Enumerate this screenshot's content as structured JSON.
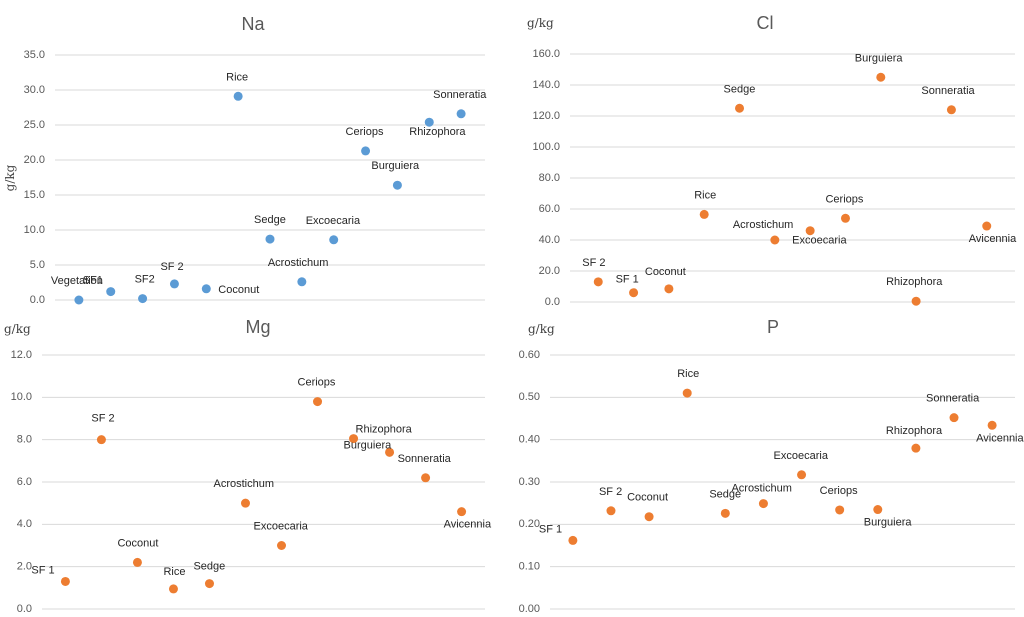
{
  "chart_data": [
    {
      "type": "scatter",
      "title": "Na",
      "ylabel": "g/kg",
      "ylim": [
        0,
        35
      ],
      "ystep": 5,
      "ydecimals": 1,
      "grid": true,
      "color": "#5B9BD5",
      "points": [
        {
          "label": "Vegetation",
          "x": 1,
          "y": 0.0
        },
        {
          "label": "SF1",
          "x": 2,
          "y": 1.2
        },
        {
          "label": "SF2",
          "x": 3,
          "y": 0.2
        },
        {
          "label": "SF 2",
          "x": 4,
          "y": 2.3
        },
        {
          "label": "Coconut",
          "x": 5,
          "y": 1.6
        },
        {
          "label": "Rice",
          "x": 6,
          "y": 29.1
        },
        {
          "label": "Sedge",
          "x": 7,
          "y": 8.7
        },
        {
          "label": "Acrostichum",
          "x": 8,
          "y": 2.6
        },
        {
          "label": "Excoecaria",
          "x": 9,
          "y": 8.6
        },
        {
          "label": "Ceriops",
          "x": 10,
          "y": 21.3
        },
        {
          "label": "Burguiera",
          "x": 11,
          "y": 16.4
        },
        {
          "label": "Rhizophora",
          "x": 12,
          "y": 25.4
        },
        {
          "label": "Sonneratia",
          "x": 13,
          "y": 26.6
        }
      ]
    },
    {
      "type": "scatter",
      "title": "Cl",
      "ylabel": "g/kg",
      "ylim": [
        0,
        160
      ],
      "ystep": 20,
      "ydecimals": 1,
      "grid": true,
      "color": "#ED7D31",
      "points": [
        {
          "label": "SF 2",
          "x": 1,
          "y": 13
        },
        {
          "label": "SF 1",
          "x": 2,
          "y": 6
        },
        {
          "label": "Coconut",
          "x": 3,
          "y": 8.5
        },
        {
          "label": "Rice",
          "x": 4,
          "y": 56.5
        },
        {
          "label": "Sedge",
          "x": 5,
          "y": 125
        },
        {
          "label": "Acrostichum",
          "x": 6,
          "y": 40
        },
        {
          "label": "Excoecaria",
          "x": 7,
          "y": 46
        },
        {
          "label": "Ceriops",
          "x": 8,
          "y": 54
        },
        {
          "label": "Burguiera",
          "x": 9,
          "y": 145
        },
        {
          "label": "Rhizophora",
          "x": 10,
          "y": 0.5
        },
        {
          "label": "Sonneratia",
          "x": 11,
          "y": 124
        },
        {
          "label": "Avicennia",
          "x": 12,
          "y": 49
        }
      ]
    },
    {
      "type": "scatter",
      "title": "Mg",
      "ylabel": "g/kg",
      "ylim": [
        0,
        12
      ],
      "ystep": 2,
      "ydecimals": 1,
      "grid": true,
      "color": "#ED7D31",
      "points": [
        {
          "label": "SF 1",
          "x": 1,
          "y": 1.3
        },
        {
          "label": "SF 2",
          "x": 2,
          "y": 8.0
        },
        {
          "label": "Coconut",
          "x": 3,
          "y": 2.2
        },
        {
          "label": "Rice",
          "x": 4,
          "y": 0.95
        },
        {
          "label": "Sedge",
          "x": 5,
          "y": 1.2
        },
        {
          "label": "Acrostichum",
          "x": 6,
          "y": 5.0
        },
        {
          "label": "Excoecaria",
          "x": 7,
          "y": 3.0
        },
        {
          "label": "Ceriops",
          "x": 8,
          "y": 9.8
        },
        {
          "label": "Rhizophora",
          "x": 9,
          "y": 8.05
        },
        {
          "label": "Burguiera",
          "x": 10,
          "y": 7.4
        },
        {
          "label": "Sonneratia",
          "x": 11,
          "y": 6.2
        },
        {
          "label": "Avicennia",
          "x": 12,
          "y": 4.6
        }
      ]
    },
    {
      "type": "scatter",
      "title": "P",
      "ylabel": "g/kg",
      "ylim": [
        0,
        0.6
      ],
      "ystep": 0.1,
      "ydecimals": 2,
      "grid": true,
      "color": "#ED7D31",
      "points": [
        {
          "label": "SF 1",
          "x": 1,
          "y": 0.162
        },
        {
          "label": "SF 2",
          "x": 2,
          "y": 0.232
        },
        {
          "label": "Coconut",
          "x": 3,
          "y": 0.218
        },
        {
          "label": "Rice",
          "x": 4,
          "y": 0.51
        },
        {
          "label": "Sedge",
          "x": 5,
          "y": 0.226
        },
        {
          "label": "Acrostichum",
          "x": 6,
          "y": 0.249
        },
        {
          "label": "Excoecaria",
          "x": 7,
          "y": 0.317
        },
        {
          "label": "Ceriops",
          "x": 8,
          "y": 0.234
        },
        {
          "label": "Burguiera",
          "x": 9,
          "y": 0.235
        },
        {
          "label": "Rhizophora",
          "x": 10,
          "y": 0.38
        },
        {
          "label": "Sonneratia",
          "x": 11,
          "y": 0.452
        },
        {
          "label": "Avicennia",
          "x": 12,
          "y": 0.434
        }
      ]
    }
  ]
}
